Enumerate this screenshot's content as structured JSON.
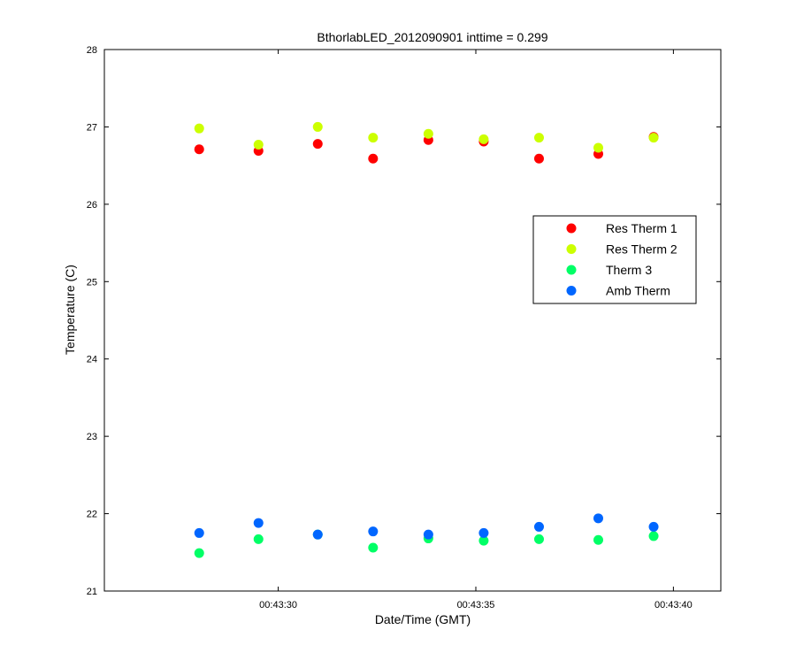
{
  "chart_data": {
    "type": "scatter",
    "title": "BthorlabLED_2012090901 inttime = 0.299",
    "xlabel": "Date/Time (GMT)",
    "ylabel": "Temperature (C)",
    "xlim": [
      "00:43:25.6",
      "00:43:41.2"
    ],
    "ylim": [
      21,
      28
    ],
    "x_tick_labels": [
      "00:43:30",
      "00:43:35",
      "00:43:40"
    ],
    "x_ticks": [
      "00:43:30",
      "00:43:35",
      "00:43:40"
    ],
    "y_ticks": [
      21,
      22,
      23,
      24,
      25,
      26,
      27,
      28
    ],
    "grid": false,
    "legend_position": "upper-right",
    "x": [
      "00:43:28.0",
      "00:43:29.5",
      "00:43:31.0",
      "00:43:32.4",
      "00:43:33.8",
      "00:43:35.2",
      "00:43:36.6",
      "00:43:38.1",
      "00:43:39.5"
    ],
    "series": [
      {
        "name": "Res Therm 1",
        "color": "#ff0000",
        "values": [
          26.71,
          26.69,
          26.78,
          26.59,
          26.83,
          26.81,
          26.59,
          26.65,
          26.87
        ]
      },
      {
        "name": "Res Therm 2",
        "color": "#ccff00",
        "values": [
          26.98,
          26.77,
          27.0,
          26.86,
          26.91,
          26.84,
          26.86,
          26.73,
          26.86
        ]
      },
      {
        "name": "Therm 3",
        "color": "#00ff66",
        "values": [
          21.49,
          21.67,
          21.73,
          21.56,
          21.68,
          21.65,
          21.67,
          21.66,
          21.71
        ]
      },
      {
        "name": "Amb Therm",
        "color": "#0066ff",
        "values": [
          21.75,
          21.88,
          21.73,
          21.77,
          21.73,
          21.75,
          21.83,
          21.94,
          21.83
        ]
      }
    ]
  }
}
